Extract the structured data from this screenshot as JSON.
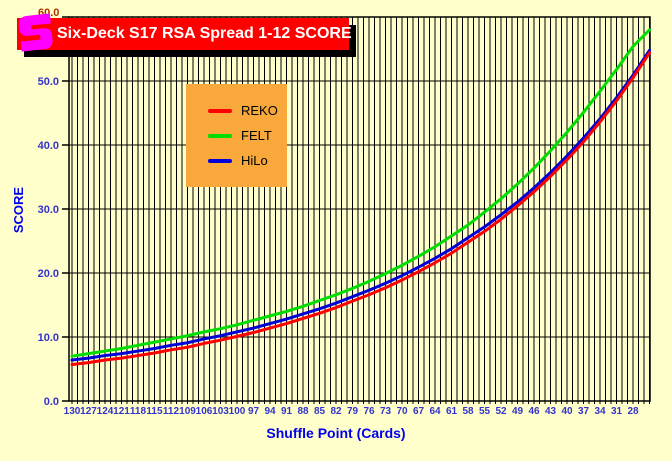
{
  "background": "#FFFFCC",
  "banner": {
    "title": "Six-Deck S17 RSA Spread 1-12 SCORE",
    "background": "#FF0000",
    "text_color": "#FFFFFF",
    "shadow_color": "#000000",
    "logo_color": "#FF00FF"
  },
  "partial_top_tick_label": "60.0",
  "legend": {
    "background": "#F9A83C",
    "items": [
      {
        "label": "REKO",
        "color": "#FF0000"
      },
      {
        "label": "FELT",
        "color": "#00DD00"
      },
      {
        "label": "HiLo",
        "color": "#0000D8"
      }
    ]
  },
  "chart_data": {
    "type": "line",
    "title": "Six-Deck S17 RSA Spread 1-12 SCORE",
    "xlabel": "Shuffle Point (Cards)",
    "ylabel": "SCORE",
    "x_axis_reversed": true,
    "grid": {
      "vertical_step_cards": 1,
      "horizontal_step": 10
    },
    "legend_position": "upper-left-inside",
    "ylim": [
      0,
      60
    ],
    "y_ticks": [
      0,
      10,
      20,
      30,
      40,
      50,
      60
    ],
    "y_tick_labels": [
      "0.0",
      "10.0",
      "20.0",
      "30.0",
      "40.0",
      "50.0",
      "60.0"
    ],
    "x": [
      130,
      127,
      124,
      121,
      118,
      115,
      112,
      109,
      106,
      103,
      100,
      97,
      94,
      91,
      88,
      85,
      82,
      79,
      76,
      73,
      70,
      67,
      64,
      61,
      58,
      55,
      52,
      49,
      46,
      43,
      40,
      37,
      34,
      31,
      28,
      25
    ],
    "x_tick_labels": [
      "130",
      "127",
      "124",
      "121",
      "118",
      "115",
      "112",
      "109",
      "106",
      "103",
      "100",
      "97",
      "94",
      "91",
      "88",
      "85",
      "82",
      "79",
      "76",
      "73",
      "70",
      "67",
      "64",
      "61",
      "58",
      "55",
      "52",
      "49",
      "46",
      "43",
      "40",
      "37",
      "34",
      "31",
      "28"
    ],
    "series": [
      {
        "name": "REKO",
        "color": "#FF0000",
        "values": [
          5.7,
          6.0,
          6.4,
          6.7,
          7.1,
          7.5,
          8.0,
          8.4,
          9.0,
          9.5,
          10.1,
          10.7,
          11.4,
          12.1,
          12.9,
          13.7,
          14.6,
          15.6,
          16.6,
          17.7,
          18.9,
          20.2,
          21.6,
          23.1,
          24.8,
          26.5,
          28.4,
          30.5,
          32.7,
          35.1,
          37.7,
          40.5,
          43.6,
          46.9,
          50.5,
          54.4
        ]
      },
      {
        "name": "FELT",
        "color": "#00DD00",
        "values": [
          7.0,
          7.4,
          7.8,
          8.2,
          8.7,
          9.2,
          9.7,
          10.2,
          10.8,
          11.3,
          11.9,
          12.6,
          13.3,
          14.0,
          14.8,
          15.7,
          16.6,
          17.6,
          18.7,
          19.9,
          21.2,
          22.6,
          24.1,
          25.8,
          27.5,
          29.5,
          31.6,
          33.9,
          36.4,
          39.1,
          42.0,
          45.1,
          48.4,
          51.8,
          55.4,
          58.0
        ]
      },
      {
        "name": "HiLo",
        "color": "#0000D8",
        "values": [
          6.4,
          6.7,
          7.1,
          7.4,
          7.8,
          8.2,
          8.7,
          9.1,
          9.7,
          10.2,
          10.8,
          11.4,
          12.1,
          12.8,
          13.6,
          14.4,
          15.3,
          16.3,
          17.3,
          18.4,
          19.6,
          20.9,
          22.3,
          23.8,
          25.5,
          27.2,
          29.1,
          31.1,
          33.3,
          35.7,
          38.3,
          41.1,
          44.1,
          47.4,
          50.9,
          54.8
        ]
      }
    ],
    "draw_order": [
      1,
      2,
      0
    ],
    "tick_label_color": "#3333CC",
    "axis_title_color": "#0000EE"
  }
}
